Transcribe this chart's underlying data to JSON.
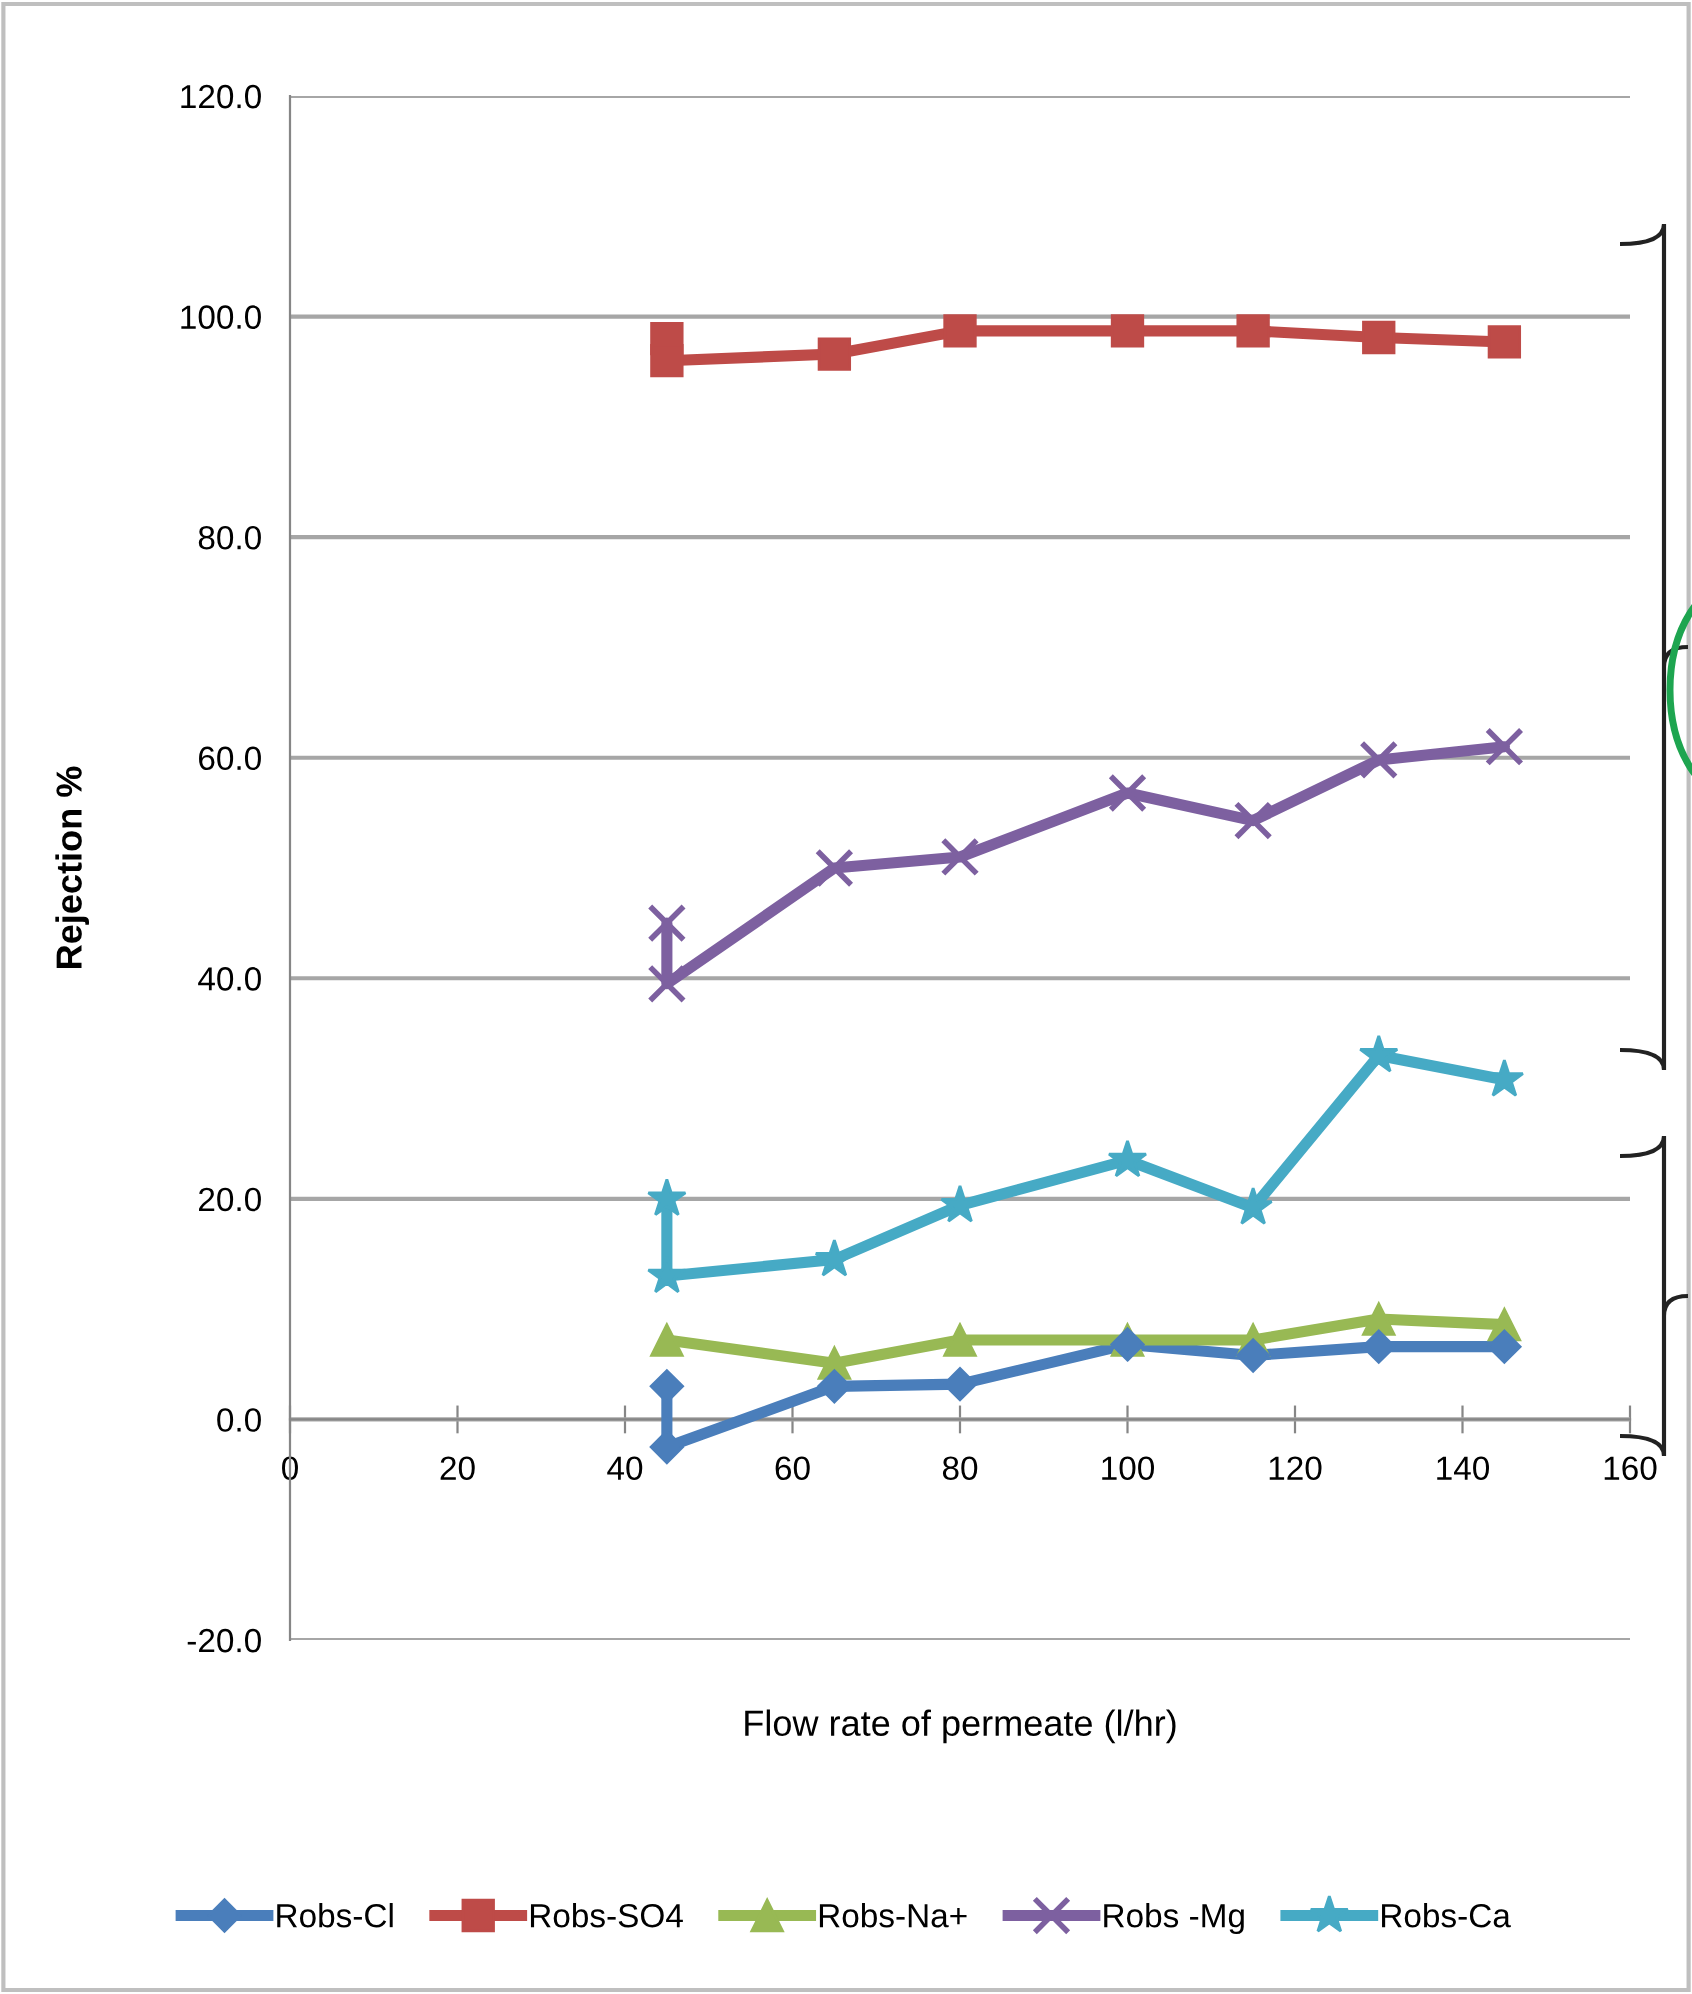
{
  "chart_data": {
    "type": "line",
    "xlabel": "Flow rate of permeate (l/hr)",
    "ylabel": "Rejection %",
    "xlim": [
      0,
      160
    ],
    "xticks": [
      0,
      20,
      40,
      60,
      80,
      100,
      120,
      140,
      160
    ],
    "ylim": [
      -20,
      120
    ],
    "yticks": [
      {
        "value": -20,
        "label": "-20.0"
      },
      {
        "value": 0,
        "label": "0.0"
      },
      {
        "value": 20,
        "label": "20.0"
      },
      {
        "value": 40,
        "label": "40.0"
      },
      {
        "value": 60,
        "label": "60.0"
      },
      {
        "value": 80,
        "label": "80.0"
      },
      {
        "value": 100,
        "label": "100.0"
      },
      {
        "value": 120,
        "label": "120.0"
      }
    ],
    "grid": "y",
    "legend": "bottom",
    "line_style": "solid",
    "series": [
      {
        "name": "Robs-Cl",
        "color": "#4a7ebb",
        "marker": "diamond",
        "x": [
          45,
          45,
          65,
          80,
          100,
          115,
          130,
          145
        ],
        "values": [
          3.0,
          -2.5,
          3.0,
          3.2,
          6.8,
          5.8,
          6.6,
          6.6
        ]
      },
      {
        "name": "Robs-SO4",
        "color": "#be4b48",
        "marker": "square",
        "x": [
          45,
          45,
          65,
          80,
          100,
          115,
          130,
          145
        ],
        "values": [
          98.0,
          96.0,
          96.6,
          98.7,
          98.7,
          98.7,
          98.1,
          97.7
        ]
      },
      {
        "name": "Robs-Na+",
        "color": "#98b954",
        "marker": "triangle",
        "x": [
          45,
          65,
          80,
          100,
          115,
          130,
          145
        ],
        "values": [
          7.2,
          5.1,
          7.2,
          7.2,
          7.2,
          9.1,
          8.6
        ]
      },
      {
        "name": "Robs -Mg",
        "color": "#7d60a0",
        "marker": "cross",
        "x": [
          45,
          45,
          65,
          80,
          100,
          115,
          130,
          145
        ],
        "values": [
          45.0,
          39.5,
          50.0,
          51.0,
          56.8,
          54.3,
          59.8,
          61.0
        ]
      },
      {
        "name": "Robs-Ca",
        "color": "#46aac5",
        "marker": "star",
        "x": [
          45,
          45,
          65,
          80,
          100,
          115,
          130,
          145
        ],
        "values": [
          20.0,
          13.0,
          14.5,
          19.4,
          23.5,
          19.2,
          33.0,
          30.8
        ]
      }
    ]
  }
}
